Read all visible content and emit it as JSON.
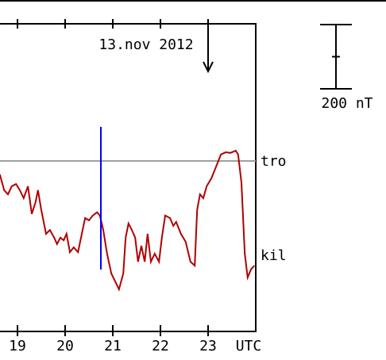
{
  "chart_data": {
    "type": "line",
    "date_label": "13.nov 2012",
    "x_unit_label": "UTC",
    "xlim": [
      18.633,
      24
    ],
    "xticks": [
      19,
      20,
      21,
      22,
      23
    ],
    "ylim": [
      -531,
      427
    ],
    "reference": {
      "name": "tro",
      "value": 0,
      "color": "#a0a0a0"
    },
    "marker": {
      "x": 20.75,
      "values": [
        106,
        -338
      ],
      "color": "#0000ff"
    },
    "arrow_x": 23,
    "scale_bar": {
      "value": 200,
      "label": "200 nT"
    },
    "series": [
      {
        "name": "kil",
        "color": "#b00000",
        "x": [
          18.63,
          18.72,
          18.8,
          18.88,
          18.97,
          19.05,
          19.13,
          19.22,
          19.3,
          19.38,
          19.43,
          19.5,
          19.6,
          19.68,
          19.77,
          19.83,
          19.9,
          19.97,
          20.03,
          20.1,
          20.18,
          20.27,
          20.35,
          20.42,
          20.5,
          20.58,
          20.67,
          20.73,
          20.8,
          20.88,
          20.97,
          21.05,
          21.13,
          21.22,
          21.27,
          21.33,
          21.4,
          21.47,
          21.53,
          21.6,
          21.67,
          21.73,
          21.8,
          21.88,
          21.97,
          22.03,
          22.1,
          22.2,
          22.27,
          22.33,
          22.43,
          22.53,
          22.63,
          22.72,
          22.77,
          22.83,
          22.9,
          22.97,
          23.07,
          23.17,
          23.27,
          23.37,
          23.47,
          23.58,
          23.63,
          23.7,
          23.77,
          23.83,
          23.9,
          23.97
        ],
        "values": [
          -42,
          -91,
          -104,
          -79,
          -72,
          -91,
          -116,
          -79,
          -165,
          -128,
          -91,
          -153,
          -227,
          -215,
          -239,
          -259,
          -239,
          -247,
          -227,
          -284,
          -269,
          -284,
          -227,
          -178,
          -185,
          -170,
          -160,
          -170,
          -215,
          -289,
          -351,
          -375,
          -400,
          -351,
          -239,
          -195,
          -215,
          -239,
          -314,
          -264,
          -314,
          -227,
          -314,
          -289,
          -314,
          -239,
          -170,
          -178,
          -202,
          -190,
          -227,
          -252,
          -314,
          -326,
          -153,
          -104,
          -116,
          -79,
          -54,
          -17,
          20,
          27,
          25,
          32,
          20,
          -67,
          -289,
          -363,
          -338,
          -326
        ]
      }
    ]
  }
}
